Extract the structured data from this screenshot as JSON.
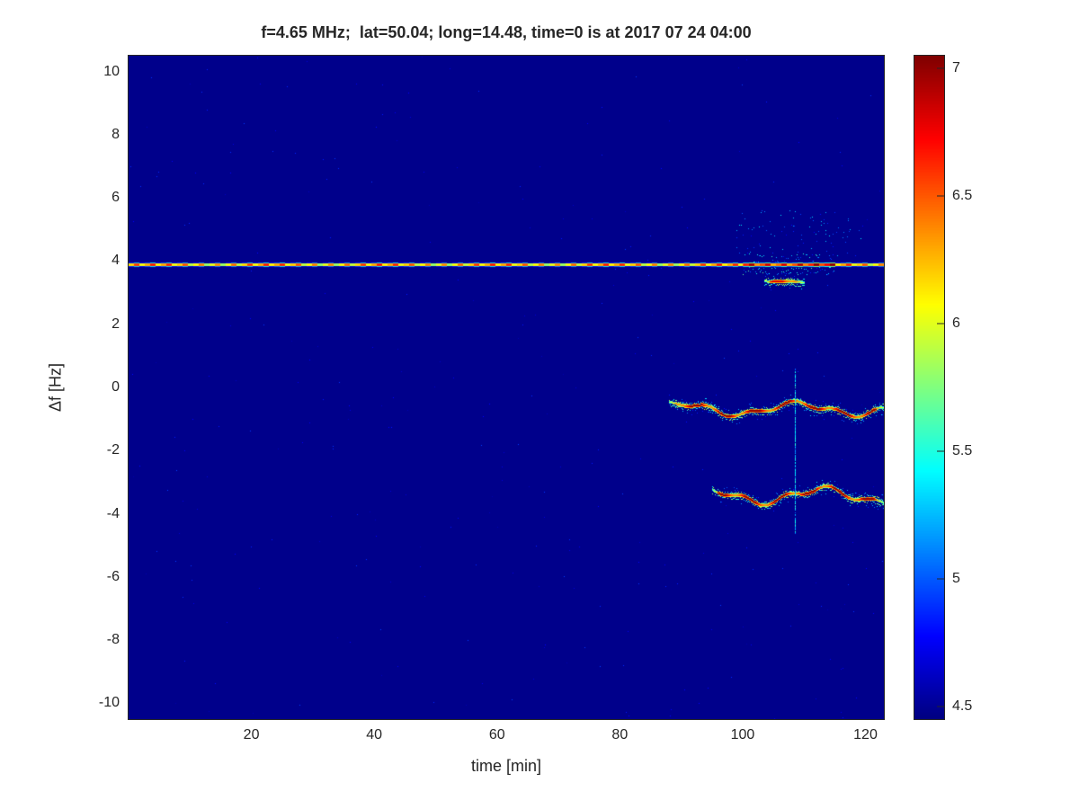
{
  "figure": {
    "background": "#ffffff"
  },
  "colors": {
    "axis_text": "#262626",
    "deep_blue_background": "#00008B",
    "colormap_name": "jet"
  },
  "chart_data": {
    "type": "heatmap",
    "title": "f=4.65 MHz;  lat=50.04; long=14.48, time=0 is at 2017 07 24 04:00",
    "xlabel": "time [min]",
    "ylabel": "Δf [Hz]",
    "xlim": [
      0,
      123
    ],
    "ylim": [
      -10.5,
      10.5
    ],
    "x_ticks": [
      20,
      40,
      60,
      80,
      100,
      120
    ],
    "y_ticks": [
      10,
      8,
      6,
      4,
      2,
      0,
      -2,
      -4,
      -6,
      -8,
      -10
    ],
    "grid": false,
    "legend": "none",
    "colormap": "jet",
    "colorbar": {
      "position": "right",
      "clim": [
        4.45,
        7.05
      ],
      "ticks": [
        4.5,
        5,
        5.5,
        6,
        6.5,
        7
      ]
    },
    "background_value": 4.48,
    "features": [
      {
        "kind": "hline",
        "y": 3.9,
        "x_start": 0,
        "x_end": 123,
        "base_value": 6.15,
        "enhanced_x": [
          100,
          115
        ],
        "enhanced_value": 7.0,
        "note": "continuous carrier line, dashed yellow-orange-red, strongest near t=100-115 min"
      },
      {
        "kind": "trace",
        "y_center": -0.68,
        "x_start": 88,
        "x_end": 123,
        "amplitude": 0.18,
        "peak_value": 7.0,
        "note": "wavy Doppler trace near -0.7 Hz appearing after t=88 min"
      },
      {
        "kind": "trace",
        "y_center": -3.42,
        "x_start": 95,
        "x_end": 123,
        "amplitude": 0.22,
        "peak_value": 7.0,
        "note": "wavy Doppler trace near -3.4 Hz appearing after t=95 min"
      },
      {
        "kind": "trace",
        "y_center": 3.38,
        "x_start": 103.5,
        "x_end": 110,
        "amplitude": 0.05,
        "peak_value": 6.8,
        "note": "short fragment just below carrier line"
      },
      {
        "kind": "scatter",
        "x_range": [
          99,
          120
        ],
        "y_range": [
          4.1,
          5.6
        ],
        "value_range": [
          4.75,
          5.4
        ],
        "count": 90,
        "note": "weak blue speckle cloud above carrier line"
      },
      {
        "kind": "vline",
        "x": 108.5,
        "y_start": -4.6,
        "y_end": 0.6,
        "value": 5.2,
        "note": "faint vertical interference streak"
      }
    ]
  }
}
